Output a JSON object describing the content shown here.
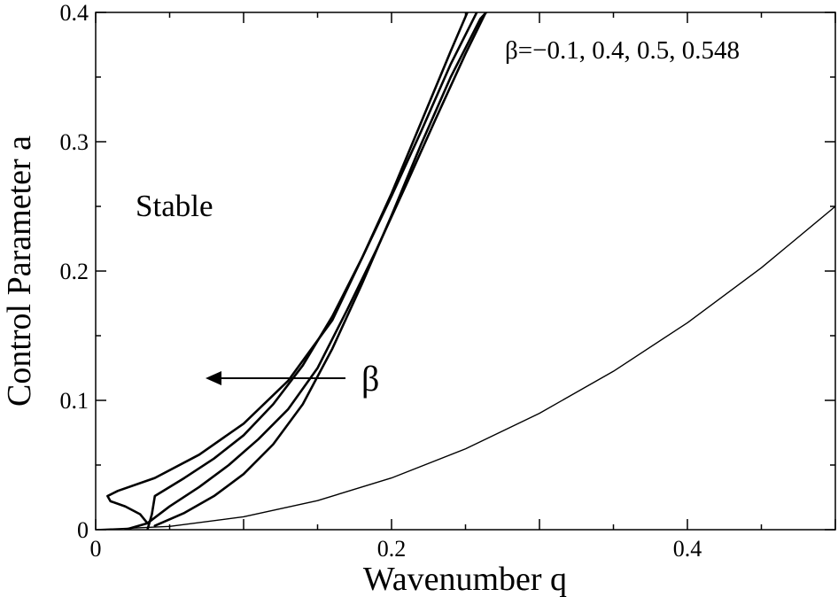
{
  "chart_data": {
    "type": "line",
    "xlabel": "Wavenumber q",
    "ylabel": "Control Parameter a",
    "xlim": [
      0,
      0.5
    ],
    "ylim": [
      0,
      0.4
    ],
    "x_ticks": [
      {
        "value": 0,
        "label": "0"
      },
      {
        "value": 0.2,
        "label": "0.2"
      },
      {
        "value": 0.4,
        "label": "0.4"
      }
    ],
    "y_ticks": [
      {
        "value": 0,
        "label": "0"
      },
      {
        "value": 0.1,
        "label": "0.1"
      },
      {
        "value": 0.2,
        "label": "0.2"
      },
      {
        "value": 0.3,
        "label": "0.3"
      },
      {
        "value": 0.4,
        "label": "0.4"
      }
    ],
    "grid": false,
    "annotations": {
      "beta_values": "β=−0.1, 0.4, 0.5, 0.548",
      "region": "Stable",
      "arrow_label": "β"
    },
    "series": [
      {
        "style": "thin",
        "points": [
          [
            0,
            0
          ],
          [
            0.05,
            0.0025
          ],
          [
            0.1,
            0.01
          ],
          [
            0.15,
            0.0225
          ],
          [
            0.2,
            0.04
          ],
          [
            0.25,
            0.0625
          ],
          [
            0.3,
            0.09
          ],
          [
            0.35,
            0.1225
          ],
          [
            0.4,
            0.16
          ],
          [
            0.45,
            0.2025
          ],
          [
            0.5,
            0.25
          ]
        ]
      },
      {
        "style": "thick",
        "points": [
          [
            0.02,
            0.0
          ],
          [
            0.035,
            0.005
          ],
          [
            0.03,
            0.012
          ],
          [
            0.02,
            0.018
          ],
          [
            0.01,
            0.022
          ],
          [
            0.008,
            0.026
          ],
          [
            0.015,
            0.03
          ],
          [
            0.04,
            0.04
          ],
          [
            0.07,
            0.058
          ],
          [
            0.1,
            0.082
          ],
          [
            0.13,
            0.115
          ],
          [
            0.16,
            0.162
          ],
          [
            0.18,
            0.21
          ],
          [
            0.2,
            0.26
          ],
          [
            0.22,
            0.315
          ],
          [
            0.24,
            0.37
          ],
          [
            0.255,
            0.41
          ]
        ]
      },
      {
        "style": "thick",
        "points": [
          [
            0.035,
            0.0
          ],
          [
            0.038,
            0.012
          ],
          [
            0.04,
            0.026
          ],
          [
            0.06,
            0.04
          ],
          [
            0.08,
            0.055
          ],
          [
            0.1,
            0.073
          ],
          [
            0.12,
            0.097
          ],
          [
            0.14,
            0.127
          ],
          [
            0.16,
            0.165
          ],
          [
            0.18,
            0.21
          ],
          [
            0.2,
            0.258
          ],
          [
            0.22,
            0.308
          ],
          [
            0.24,
            0.36
          ],
          [
            0.262,
            0.41
          ]
        ]
      },
      {
        "style": "thick",
        "points": [
          [
            0.035,
            0.005
          ],
          [
            0.05,
            0.018
          ],
          [
            0.07,
            0.033
          ],
          [
            0.09,
            0.05
          ],
          [
            0.11,
            0.07
          ],
          [
            0.13,
            0.093
          ],
          [
            0.15,
            0.125
          ],
          [
            0.17,
            0.17
          ],
          [
            0.19,
            0.217
          ],
          [
            0.21,
            0.267
          ],
          [
            0.23,
            0.318
          ],
          [
            0.25,
            0.368
          ],
          [
            0.268,
            0.41
          ]
        ]
      },
      {
        "style": "thick",
        "points": [
          [
            0.04,
            0.003
          ],
          [
            0.06,
            0.013
          ],
          [
            0.08,
            0.026
          ],
          [
            0.1,
            0.043
          ],
          [
            0.12,
            0.066
          ],
          [
            0.14,
            0.097
          ],
          [
            0.16,
            0.14
          ],
          [
            0.18,
            0.19
          ],
          [
            0.2,
            0.243
          ],
          [
            0.22,
            0.298
          ],
          [
            0.24,
            0.35
          ],
          [
            0.26,
            0.395
          ],
          [
            0.272,
            0.41
          ]
        ]
      }
    ]
  }
}
